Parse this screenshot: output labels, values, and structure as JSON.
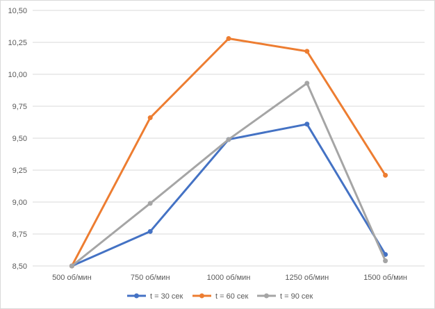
{
  "chart_data": {
    "type": "line",
    "title": "",
    "xlabel": "",
    "ylabel": "",
    "categories": [
      "500 об/мин",
      "750 об/мин",
      "1000 об/мин",
      "1250 об/мин",
      "1500 об/мин"
    ],
    "series": [
      {
        "name": "t = 30 сек",
        "color": "#4472C4",
        "values": [
          8.5,
          8.77,
          9.49,
          9.61,
          8.59
        ]
      },
      {
        "name": "t = 60 сек",
        "color": "#ED7D31",
        "values": [
          8.5,
          9.66,
          10.28,
          10.18,
          9.21
        ]
      },
      {
        "name": "t = 90 сек",
        "color": "#A5A5A5",
        "values": [
          8.5,
          8.99,
          9.49,
          9.93,
          8.54
        ]
      }
    ],
    "ylim": [
      8.5,
      10.5
    ],
    "yticks": [
      "8,50",
      "8,75",
      "9,00",
      "9,25",
      "9,50",
      "9,75",
      "10,00",
      "10,25",
      "10,50"
    ],
    "grid": true,
    "legend_position": "bottom"
  }
}
